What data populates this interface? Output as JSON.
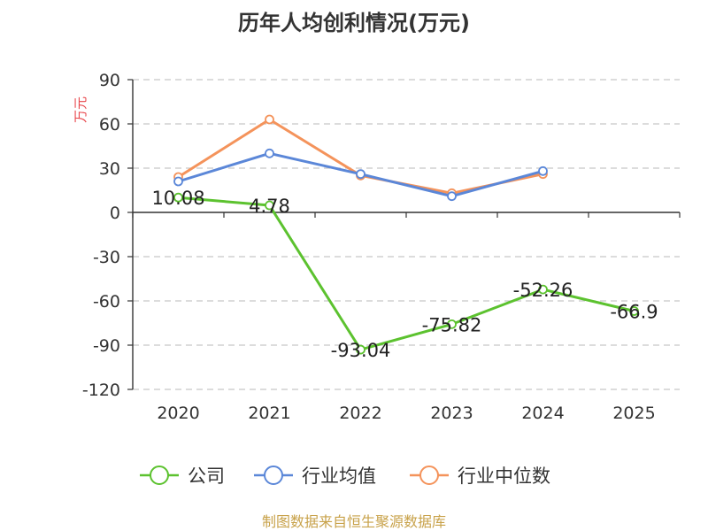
{
  "chart_data": {
    "type": "line",
    "title": "历年人均创利情况(万元)",
    "ylabel": "万元",
    "xlabel": "",
    "categories": [
      "2020",
      "2021",
      "2022",
      "2023",
      "2024",
      "2025"
    ],
    "ylim": [
      -120,
      90
    ],
    "yticks": [
      90,
      60,
      30,
      0,
      -30,
      -60,
      -90,
      -120
    ],
    "ytick_labels": [
      "90",
      "60",
      "30",
      "0",
      "-30",
      "-60",
      "-90",
      "-120"
    ],
    "grid": true,
    "legend_position": "bottom",
    "series": [
      {
        "name": "公司",
        "color": "#5cc22f",
        "values": [
          10.08,
          4.78,
          -93.04,
          -75.82,
          -52.26,
          -66.9
        ],
        "labels": [
          "10.08",
          "4.78",
          "-93.04",
          "-75.82",
          "-52.26",
          "-66.9"
        ]
      },
      {
        "name": "行业均值",
        "color": "#5b87d8",
        "values": [
          21,
          40,
          26,
          11,
          28,
          null
        ]
      },
      {
        "name": "行业中位数",
        "color": "#f4935b",
        "values": [
          24,
          63,
          25,
          13,
          26,
          null
        ]
      }
    ],
    "source": "制图数据来自恒生聚源数据库"
  },
  "colors": {
    "ylabel": "#e8474c",
    "source": "#c8a24a",
    "axis": "#333333",
    "grid": "#c8c8c8"
  }
}
